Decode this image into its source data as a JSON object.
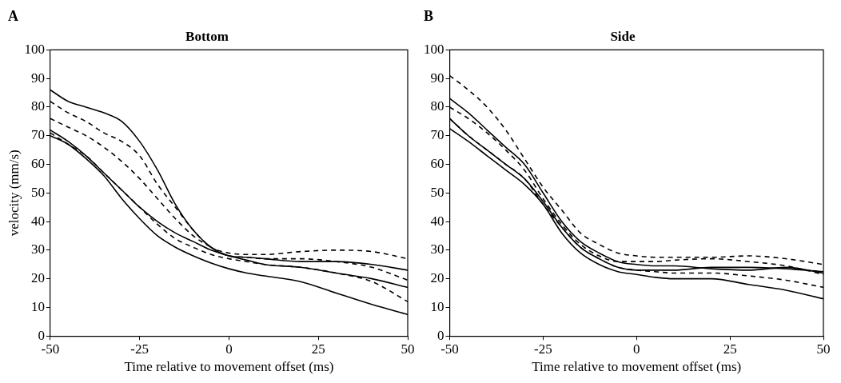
{
  "chart_data": [
    {
      "type": "line",
      "title": "Bottom",
      "xlabel": "Time relative to movement offset (ms)",
      "ylabel": "velocity (mm/s)",
      "annotations": [
        "A"
      ],
      "xlim": [
        -50,
        50
      ],
      "xticks": [
        -50,
        -25,
        0,
        25,
        50
      ],
      "ylim": [
        0,
        100
      ],
      "yticks": [
        0,
        10,
        20,
        30,
        40,
        50,
        60,
        70,
        80,
        90,
        100
      ],
      "marker": "none",
      "x": [
        -50,
        -45,
        -40,
        -35,
        -30,
        -25,
        -20,
        -15,
        -10,
        -5,
        0,
        5,
        10,
        20,
        30,
        40,
        50
      ],
      "series": [
        {
          "color": "#000000",
          "line_style": "solid",
          "values": [
            86,
            82,
            80,
            78,
            75,
            68,
            58,
            46,
            37,
            31,
            28,
            27.5,
            27,
            26,
            26,
            25,
            23
          ]
        },
        {
          "color": "#000000",
          "line_style": "solid",
          "values": [
            72,
            68,
            63,
            57,
            51,
            45,
            40,
            36,
            33,
            30,
            28,
            26.5,
            25,
            24,
            22,
            20,
            17
          ]
        },
        {
          "color": "#000000",
          "line_style": "solid",
          "values": [
            70,
            67,
            62,
            56,
            48,
            41,
            35,
            31,
            28,
            25.5,
            23.5,
            22,
            21,
            19,
            15,
            11,
            7.5
          ]
        },
        {
          "color": "#000000",
          "line_style": "dashed",
          "values": [
            82,
            78,
            75,
            71,
            68,
            63,
            53,
            45,
            37,
            31,
            29,
            28.5,
            28.5,
            29.5,
            30,
            29.5,
            27
          ]
        },
        {
          "color": "#000000",
          "line_style": "dashed",
          "values": [
            76,
            73,
            70,
            66,
            61,
            55,
            48,
            41,
            35,
            31,
            28,
            27.5,
            27,
            27,
            26,
            24,
            19.5
          ]
        },
        {
          "color": "#000000",
          "line_style": "dashed",
          "values": [
            71,
            67,
            63,
            57,
            51,
            45,
            39,
            34,
            31,
            28.5,
            27,
            26,
            25,
            24,
            22,
            19,
            12
          ]
        }
      ]
    },
    {
      "type": "line",
      "title": "Side",
      "xlabel": "Time relative to movement offset (ms)",
      "annotations": [
        "B"
      ],
      "xlim": [
        -50,
        50
      ],
      "xticks": [
        -50,
        -25,
        0,
        25,
        50
      ],
      "ylim": [
        0,
        100
      ],
      "yticks": [
        0,
        10,
        20,
        30,
        40,
        50,
        60,
        70,
        80,
        90,
        100
      ],
      "marker": "none",
      "x": [
        -50,
        -45,
        -40,
        -35,
        -30,
        -25,
        -20,
        -15,
        -10,
        -5,
        0,
        5,
        10,
        20,
        30,
        40,
        50
      ],
      "series": [
        {
          "color": "#000000",
          "line_style": "dashed",
          "values": [
            91,
            86,
            80,
            72,
            62,
            52,
            44,
            36,
            32,
            29,
            28,
            27.5,
            27.5,
            27.5,
            28,
            27,
            25
          ]
        },
        {
          "color": "#000000",
          "line_style": "solid",
          "values": [
            83,
            78,
            72,
            66,
            60,
            50,
            40,
            33,
            29,
            26,
            25,
            24.5,
            24.5,
            23.5,
            23,
            24,
            22
          ]
        },
        {
          "color": "#000000",
          "line_style": "dashed",
          "values": [
            80,
            76,
            71,
            65,
            58,
            48,
            39,
            32,
            28,
            26,
            26,
            26,
            26.5,
            27,
            26,
            24.5,
            21.5
          ]
        },
        {
          "color": "#000000",
          "line_style": "solid",
          "values": [
            76,
            70,
            65,
            60,
            55,
            47,
            38,
            31,
            27,
            24,
            23,
            23,
            23,
            24,
            24,
            23.5,
            22.5
          ]
        },
        {
          "color": "#000000",
          "line_style": "solid",
          "values": [
            72.5,
            68,
            63,
            58,
            53,
            46,
            36,
            29,
            25,
            22.5,
            21.5,
            20.5,
            20,
            20,
            18,
            16,
            13
          ]
        },
        {
          "color": "#000000",
          "line_style": "dashed",
          "values": [
            76,
            70,
            65,
            60,
            55,
            46,
            38,
            31,
            27,
            24,
            23,
            22.5,
            22,
            22,
            21,
            19.5,
            17
          ]
        }
      ]
    }
  ]
}
